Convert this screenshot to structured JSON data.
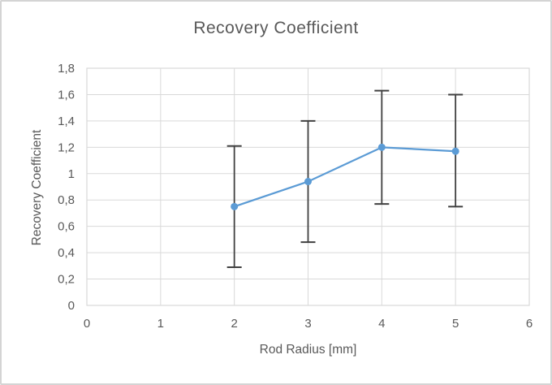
{
  "chart_data": {
    "type": "line",
    "title": "Recovery Coefficient",
    "xlabel": "Rod Radius [mm]",
    "ylabel": "Recovery Coefficient",
    "x": [
      2,
      3,
      4,
      5
    ],
    "values": [
      0.75,
      0.94,
      1.2,
      1.17
    ],
    "error_upper": [
      1.21,
      1.4,
      1.63,
      1.6
    ],
    "error_lower": [
      0.29,
      0.48,
      0.77,
      0.75
    ],
    "xlim": [
      0,
      6
    ],
    "ylim": [
      0,
      1.8
    ],
    "x_ticks": [
      "0",
      "1",
      "2",
      "3",
      "4",
      "5",
      "6"
    ],
    "y_ticks": [
      "0",
      "0,2",
      "0,4",
      "0,6",
      "0,8",
      "1",
      "1,2",
      "1,4",
      "1,6",
      "1,8"
    ],
    "grid": true,
    "legend": false,
    "series_color": "#5B9BD5",
    "error_bar_color": "#404040",
    "gridline_color": "#D9D9D9",
    "text_color": "#595959"
  }
}
